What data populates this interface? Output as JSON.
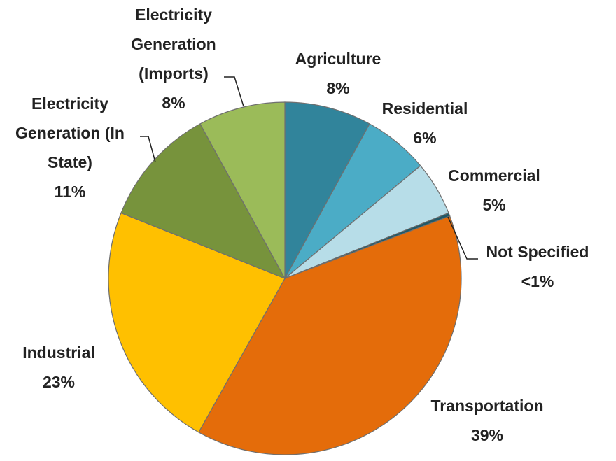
{
  "chart_data": {
    "type": "pie",
    "categories": [
      "Agriculture",
      "Residential",
      "Commercial",
      "Not Specified",
      "Transportation",
      "Industrial",
      "Electricity Generation (In State)",
      "Electricity Generation (Imports)"
    ],
    "values": [
      8,
      6,
      5,
      0.3,
      39,
      23,
      11,
      8
    ],
    "value_labels": [
      "8%",
      "6%",
      "5%",
      "<1%",
      "39%",
      "23%",
      "11%",
      "8%"
    ],
    "colors": [
      "#31849b",
      "#4bacc6",
      "#b7dde8",
      "#215968",
      "#e46c0a",
      "#ffc000",
      "#77933c",
      "#9bbb59"
    ]
  }
}
